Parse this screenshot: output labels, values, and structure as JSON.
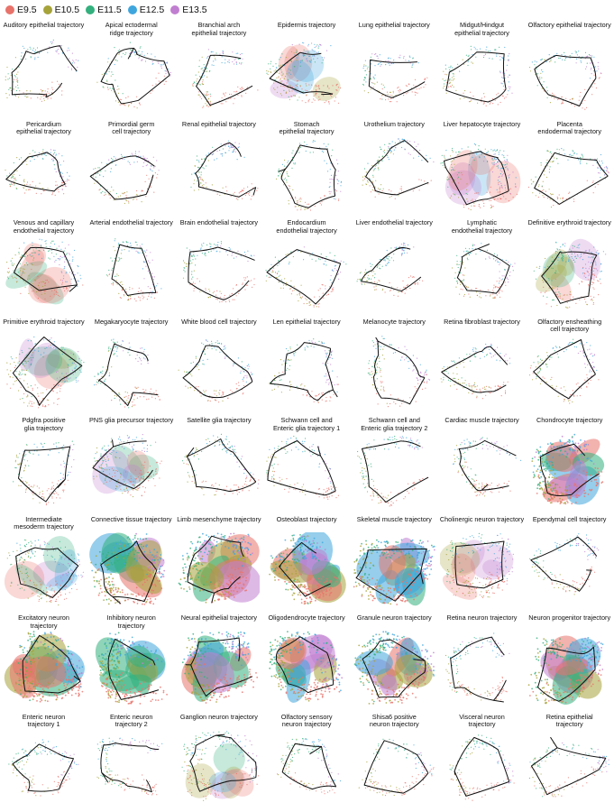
{
  "legend": [
    {
      "label": "E9.5",
      "color": "#e8736b"
    },
    {
      "label": "E10.5",
      "color": "#a6a33a"
    },
    {
      "label": "E11.5",
      "color": "#33b07d"
    },
    {
      "label": "E12.5",
      "color": "#3fa6dd"
    },
    {
      "label": "E13.5",
      "color": "#c17fd1"
    }
  ],
  "panels": [
    {
      "title": "Auditory epithelial trajectory",
      "style": "sparse"
    },
    {
      "title": "Apical ectodermal\nridge trajectory",
      "style": "sparse"
    },
    {
      "title": "Branchial arch\nepithelial trajectory",
      "style": "sparse"
    },
    {
      "title": "Epidermis trajectory",
      "style": "medium"
    },
    {
      "title": "Lung epithelial trajectory",
      "style": "sparse"
    },
    {
      "title": "Midgut/Hindgut\nepithelial trajectory",
      "style": "sparse"
    },
    {
      "title": "Olfactory epithelial trajectory",
      "style": "sparse"
    },
    {
      "title": "Pericardium\nepithelial trajectory",
      "style": "sparse"
    },
    {
      "title": "Primordial germ\ncell trajectory",
      "style": "sparse"
    },
    {
      "title": "Renal epithelial trajectory",
      "style": "sparse"
    },
    {
      "title": "Stomach\nepithelial trajectory",
      "style": "sparse"
    },
    {
      "title": "Urothelium trajectory",
      "style": "sparse"
    },
    {
      "title": "Liver hepatocyte trajectory",
      "style": "medium"
    },
    {
      "title": "Placenta\nendodermal trajectory",
      "style": "sparse"
    },
    {
      "title": "Venous and capillary\nendothelial trajectory",
      "style": "medium"
    },
    {
      "title": "Arterial endothelial trajectory",
      "style": "sparse"
    },
    {
      "title": "Brain endothelial trajectory",
      "style": "sparse"
    },
    {
      "title": "Endocardium\nendothelial trajectory",
      "style": "sparse"
    },
    {
      "title": "Liver endothelial trajectory",
      "style": "sparse"
    },
    {
      "title": "Lymphatic\nendothelial trajectory",
      "style": "sparse"
    },
    {
      "title": "Definitive erythroid trajectory",
      "style": "medium"
    },
    {
      "title": "Primitive erythroid trajectory",
      "style": "medium"
    },
    {
      "title": "Megakaryocyte trajectory",
      "style": "sparse"
    },
    {
      "title": "White blood cell trajectory",
      "style": "sparse"
    },
    {
      "title": "Len epithelial trajectory",
      "style": "sparse"
    },
    {
      "title": "Melanocyte trajectory",
      "style": "sparse"
    },
    {
      "title": "Retina fibroblast trajectory",
      "style": "sparse"
    },
    {
      "title": "Olfactory ensheathing\ncell trajectory",
      "style": "sparse"
    },
    {
      "title": "Pdgfra positive\nglia trajectory",
      "style": "sparse"
    },
    {
      "title": "PNS glia precursor trajectory",
      "style": "medium"
    },
    {
      "title": "Satellite glia trajectory",
      "style": "sparse"
    },
    {
      "title": "Schwann cell and\nEnteric glia trajectory 1",
      "style": "sparse"
    },
    {
      "title": "Schwann cell and\nEnteric glia trajectory 2",
      "style": "sparse"
    },
    {
      "title": "Cardiac muscle trajectory",
      "style": "sparse"
    },
    {
      "title": "Chondrocyte trajectory",
      "style": "dense"
    },
    {
      "title": "Intermediate\nmesoderm trajectory",
      "style": "medium"
    },
    {
      "title": "Connective tissue trajectory",
      "style": "dense"
    },
    {
      "title": "Limb mesenchyme trajectory",
      "style": "dense"
    },
    {
      "title": "Osteoblast trajectory",
      "style": "dense"
    },
    {
      "title": "Skeletal muscle trajectory",
      "style": "dense"
    },
    {
      "title": "Cholinergic neuron trajectory",
      "style": "medium"
    },
    {
      "title": "Ependymal cell trajectory",
      "style": "sparse"
    },
    {
      "title": "Excitatory neuron\ntrajectory",
      "style": "dense"
    },
    {
      "title": "Inhibitory neuron\ntrajectory",
      "style": "dense"
    },
    {
      "title": "Neural epithelial trajectory",
      "style": "dense"
    },
    {
      "title": "Oligodendrocyte trajectory",
      "style": "dense"
    },
    {
      "title": "Granule neuron trajectory",
      "style": "dense"
    },
    {
      "title": "Retina neuron trajectory",
      "style": "sparse"
    },
    {
      "title": "Neuron progenitor trajectory",
      "style": "dense"
    },
    {
      "title": "Enteric neuron\ntrajectory 1",
      "style": "sparse"
    },
    {
      "title": "Enteric neuron\ntrajectory 2",
      "style": "sparse"
    },
    {
      "title": "Ganglion neuron trajectory",
      "style": "medium"
    },
    {
      "title": "Olfactory sensory\nneuron trajectory",
      "style": "sparse"
    },
    {
      "title": "Shisa6 positive\nneuron trajectory",
      "style": "sparse"
    },
    {
      "title": "Visceral neuron\ntrajectory",
      "style": "sparse"
    },
    {
      "title": "Retina epithelial\ntrajectory",
      "style": "sparse"
    }
  ]
}
